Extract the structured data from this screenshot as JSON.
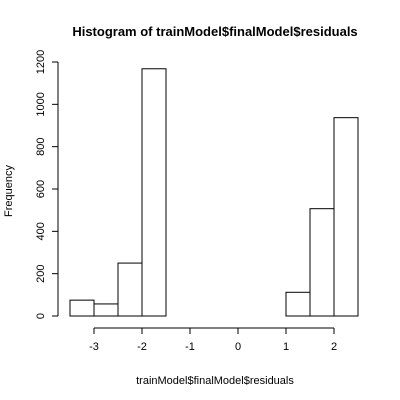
{
  "chart_data": {
    "type": "bar",
    "title": "Histogram of trainModel$finalModel$residuals",
    "xlabel": "trainModel$finalModel$residuals",
    "ylabel": "Frequency",
    "bins": [
      {
        "x0": -3.5,
        "x1": -3.0,
        "count": 75
      },
      {
        "x0": -3.0,
        "x1": -2.5,
        "count": 57
      },
      {
        "x0": -2.5,
        "x1": -2.0,
        "count": 250
      },
      {
        "x0": -2.0,
        "x1": -1.5,
        "count": 1168
      },
      {
        "x0": -1.5,
        "x1": -1.0,
        "count": 0
      },
      {
        "x0": -1.0,
        "x1": -0.5,
        "count": 0
      },
      {
        "x0": -0.5,
        "x1": 0.0,
        "count": 0
      },
      {
        "x0": 0.0,
        "x1": 0.5,
        "count": 0
      },
      {
        "x0": 0.5,
        "x1": 1.0,
        "count": 0
      },
      {
        "x0": 1.0,
        "x1": 1.5,
        "count": 112
      },
      {
        "x0": 1.5,
        "x1": 2.0,
        "count": 507
      },
      {
        "x0": 2.0,
        "x1": 2.5,
        "count": 937
      }
    ],
    "x_ticks": [
      -3,
      -2,
      -1,
      0,
      1,
      2
    ],
    "x_tick_labels": [
      "-3",
      "-2",
      "-1",
      "0",
      "1",
      "2"
    ],
    "y_ticks": [
      0,
      200,
      400,
      600,
      800,
      1000,
      1200
    ],
    "y_tick_labels": [
      "0",
      "200",
      "400",
      "600",
      "800",
      "1000",
      "1200"
    ],
    "xlim": [
      -3.5,
      2.5
    ],
    "ylim": [
      0,
      1200
    ],
    "grid": false,
    "legend": false
  }
}
